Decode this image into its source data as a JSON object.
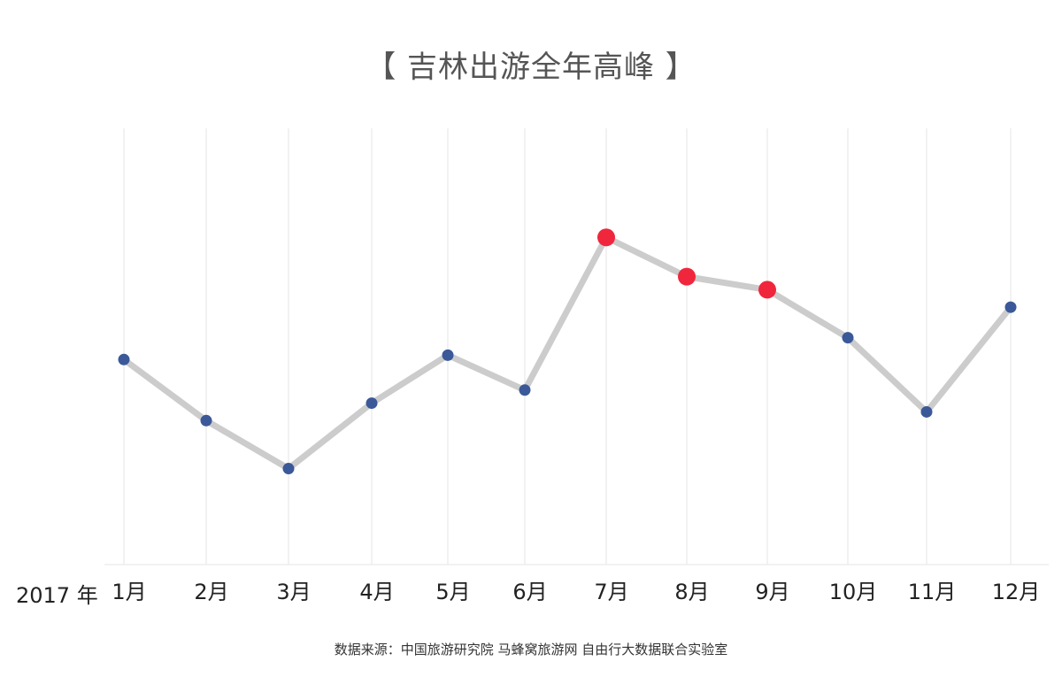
{
  "title": "【 吉林出游全年高峰 】",
  "year_label": "2017 年",
  "source": "数据来源：中国旅游研究院 马蜂窝旅游网 自由行大数据联合实验室",
  "colors": {
    "line": "#cccccc",
    "normal_point": "#3b5998",
    "peak_point": "#f0263c",
    "grid": "#e6e6e6",
    "axis_text": "#222222"
  },
  "chart_data": {
    "type": "line",
    "title": "【 吉林出游全年高峰 】",
    "xlabel": "2017 年",
    "ylabel": "",
    "y_ticks_shown": false,
    "grid": "vertical",
    "ylim": [
      0,
      100
    ],
    "categories": [
      "1月",
      "2月",
      "3月",
      "4月",
      "5月",
      "6月",
      "7月",
      "8月",
      "9月",
      "10月",
      "11月",
      "12月"
    ],
    "series": [
      {
        "values": [
          47,
          33,
          22,
          37,
          48,
          40,
          75,
          66,
          63,
          52,
          35,
          59
        ],
        "highlighted": [
          false,
          false,
          false,
          false,
          false,
          false,
          true,
          true,
          true,
          false,
          false,
          false
        ]
      }
    ]
  }
}
